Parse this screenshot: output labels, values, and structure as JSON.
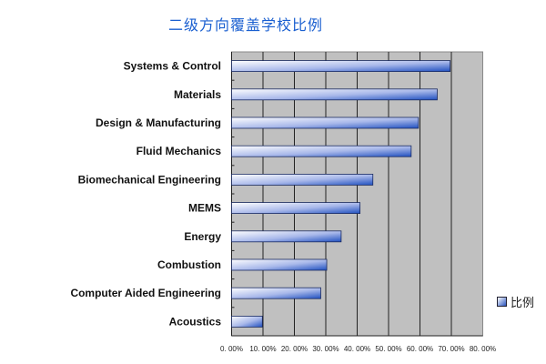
{
  "chart_data": {
    "type": "bar",
    "orientation": "horizontal",
    "title": "二级方向覆盖学校比例",
    "categories": [
      "Systems & Control",
      "Materials",
      "Design & Manufacturing",
      "Fluid Mechanics",
      "Biomechanical Engineering",
      "MEMS",
      "Energy",
      "Combustion",
      "Computer Aided Engineering",
      "Acoustics"
    ],
    "series": [
      {
        "name": "比例",
        "values": [
          69.6,
          65.5,
          59.5,
          57.2,
          45.0,
          40.9,
          34.9,
          30.3,
          28.4,
          9.8
        ]
      }
    ],
    "xlim": [
      0,
      80
    ],
    "xticks": [
      0,
      10,
      20,
      30,
      40,
      50,
      60,
      70,
      80
    ],
    "xtick_labels": [
      "0. 00%",
      "10. 00%",
      "20. 00%",
      "30. 00%",
      "40. 00%",
      "50. 00%",
      "60. 00%",
      "70. 00%",
      "80. 00%"
    ],
    "xlabel": "",
    "ylabel": "",
    "grid": true,
    "legend": {
      "position": "right",
      "entries": [
        "比例"
      ]
    },
    "colors": {
      "plot_bg": "#c0c0c0",
      "bar_dark": "#2050c0",
      "bar_light": "#ffffff",
      "title": "#1a5fd0"
    }
  }
}
